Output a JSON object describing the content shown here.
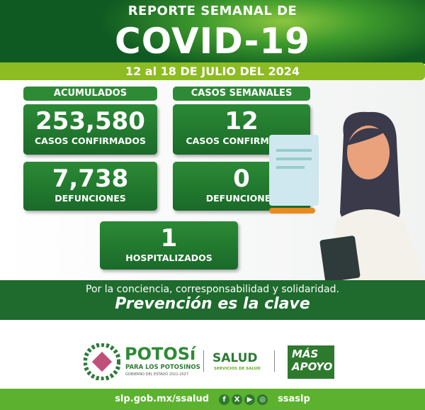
{
  "header": {
    "subtitle": "REPORTE SEMANAL DE",
    "title": "COVID-19",
    "date": "12 al 18 DE JULIO DEL 2024"
  },
  "sections": {
    "accumulated": "ACUMULADOS",
    "weekly": "CASOS SEMANALES"
  },
  "cards": [
    {
      "value": "253,580",
      "label": "CASOS CONFIRMADOS"
    },
    {
      "value": "12",
      "label": "CASOS CONFIRMADOS"
    },
    {
      "value": "7,738",
      "label": "DEFUNCIONES"
    },
    {
      "value": "0",
      "label": "DEFUNCIONES"
    },
    {
      "value": "1",
      "label": "HOSPITALIZADOS"
    }
  ],
  "band": {
    "slogan": "Por la conciencia, corresponsabilidad y solidaridad.",
    "motto": "Prevención es la clave"
  },
  "logos": {
    "potosi": "POTOSí",
    "potosi_sub": "PARA LOS POTOSINOS",
    "potosi_gov": "GOBIERNO DEL ESTADO 2021-2027",
    "salud": "SALUD",
    "salud_sub": "SERVICIOS DE SALUD",
    "mas": "MÁS",
    "apoyo": "APOYO"
  },
  "footer": {
    "url": "slp.gob.mx/ssalud",
    "handle": "ssaslp",
    "icons": [
      "facebook-icon",
      "x-icon",
      "youtube-icon",
      "instagram-icon"
    ]
  },
  "colors": {
    "dark_green": "#1e6b2d",
    "lime": "#8dbb22",
    "footer_green": "#5cb12f"
  }
}
